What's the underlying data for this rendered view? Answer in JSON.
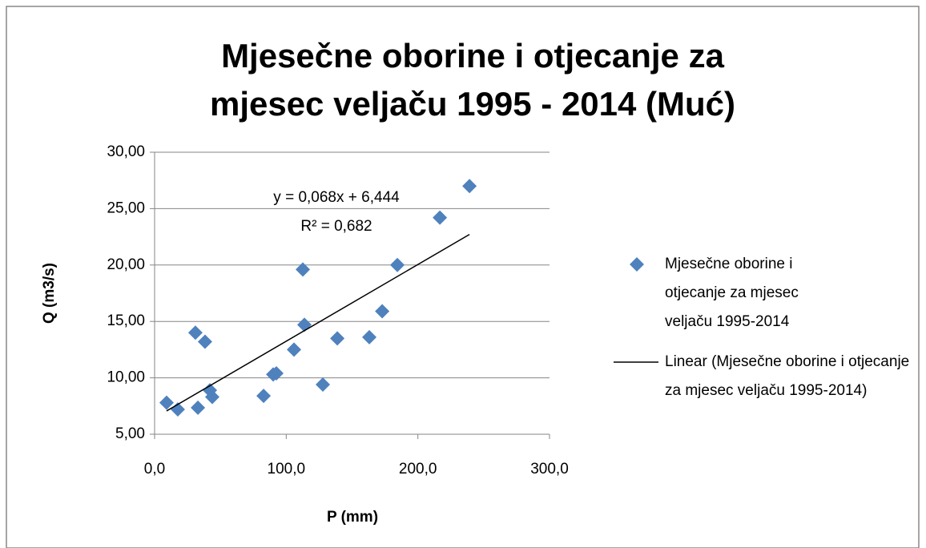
{
  "chart_data": {
    "type": "scatter",
    "title": "Mjesečne oborine i otjecanje za mjesec veljaču 1995 - 2014 (Muć)",
    "x_label": "P (mm)",
    "y_label": "Q (m3/s)",
    "series": [
      {
        "name": "Mjesečne oborine i otjecanje za mjesec veljaču 1995-2014",
        "color": "#4f81bd",
        "x": [
          9.1,
          17.6,
          31.0,
          32.9,
          38.3,
          42.0,
          43.8,
          82.8,
          90.1,
          92.5,
          105.9,
          112.6,
          113.8,
          127.8,
          138.8,
          163.1,
          172.9,
          184.4,
          216.7,
          239.2
        ],
        "values": [
          7.8,
          7.2,
          14.0,
          7.35,
          13.2,
          8.9,
          8.3,
          8.4,
          10.3,
          10.4,
          12.5,
          19.6,
          14.7,
          9.4,
          13.5,
          13.6,
          15.9,
          20.0,
          24.2,
          27.0
        ]
      }
    ],
    "trendline": {
      "name": "Linear (Mjesečne oborine i otjecanje za mjesec veljaču 1995-2014)",
      "color": "#000000",
      "equation": "y = 0,068x + 6,444",
      "r2": "R² = 0,682",
      "slope": 0.068,
      "intercept": 6.444
    },
    "xlim": [
      0,
      300
    ],
    "xticks": [
      {
        "value": 0,
        "label": "0,0"
      },
      {
        "value": 100,
        "label": "100,0"
      },
      {
        "value": 200,
        "label": "200,0"
      },
      {
        "value": 300,
        "label": "300,0"
      }
    ],
    "ylim": [
      5,
      30
    ],
    "yticks": [
      {
        "value": 5,
        "label": "5,00"
      },
      {
        "value": 10,
        "label": "10,00"
      },
      {
        "value": 15,
        "label": "15,00"
      },
      {
        "value": 20,
        "label": "20,00"
      },
      {
        "value": 25,
        "label": "25,00"
      },
      {
        "value": 30,
        "label": "30,00"
      }
    ],
    "grid": true
  }
}
